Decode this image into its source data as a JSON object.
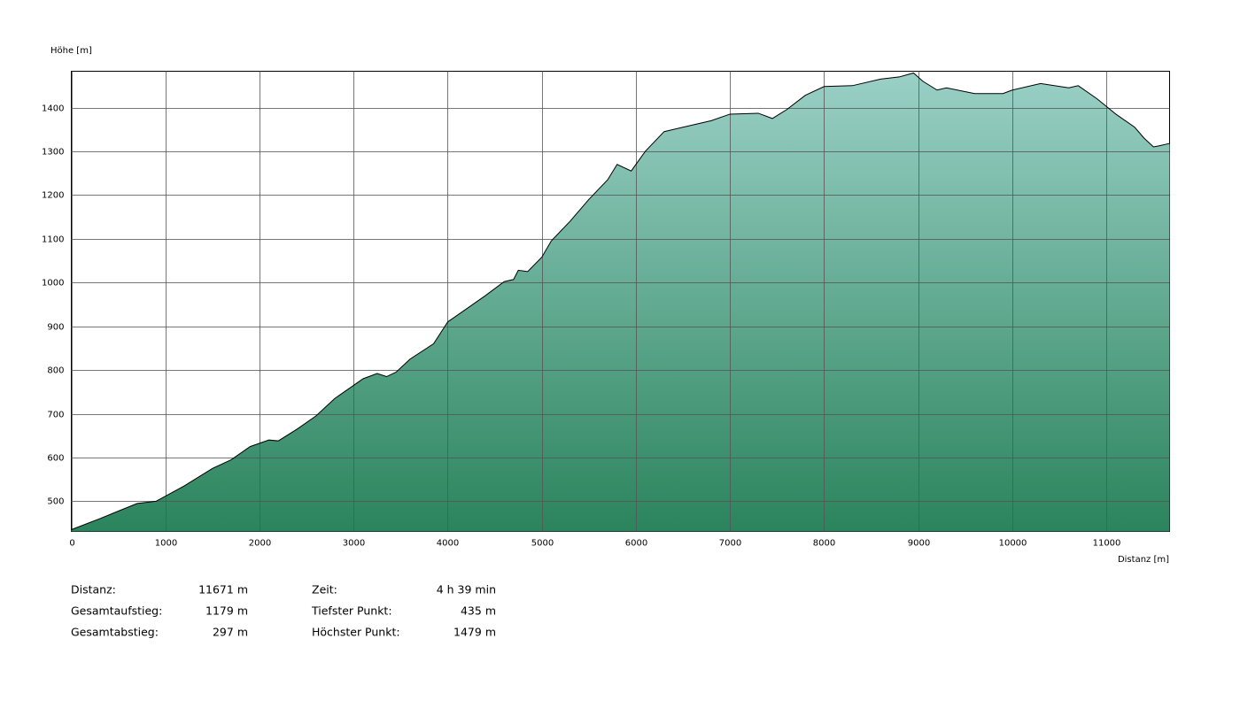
{
  "chart_data": {
    "type": "area",
    "ylabel": "Höhe [m]",
    "xlabel": "Distanz [m]",
    "x": [
      0,
      300,
      700,
      900,
      1200,
      1500,
      1700,
      1900,
      2100,
      2200,
      2400,
      2600,
      2800,
      3000,
      3100,
      3250,
      3350,
      3450,
      3600,
      3850,
      4000,
      4200,
      4400,
      4600,
      4700,
      4750,
      4850,
      5000,
      5100,
      5300,
      5500,
      5700,
      5800,
      5950,
      6100,
      6300,
      6500,
      6800,
      7000,
      7300,
      7450,
      7600,
      7800,
      8000,
      8300,
      8600,
      8800,
      8950,
      9050,
      9200,
      9300,
      9600,
      9900,
      10000,
      10300,
      10600,
      10700,
      10900,
      11100,
      11300,
      11400,
      11500,
      11550,
      11671
    ],
    "values": [
      435,
      460,
      495,
      500,
      535,
      575,
      595,
      625,
      640,
      638,
      665,
      695,
      735,
      765,
      780,
      792,
      785,
      795,
      825,
      860,
      910,
      940,
      970,
      1002,
      1007,
      1028,
      1025,
      1058,
      1095,
      1140,
      1190,
      1235,
      1270,
      1255,
      1300,
      1345,
      1355,
      1370,
      1385,
      1387,
      1375,
      1395,
      1428,
      1448,
      1450,
      1465,
      1470,
      1479,
      1460,
      1440,
      1445,
      1432,
      1432,
      1440,
      1455,
      1445,
      1450,
      1420,
      1385,
      1355,
      1330,
      1310,
      1312,
      1318
    ],
    "xlim": [
      0,
      11671
    ],
    "ylim": [
      431,
      1483
    ],
    "xticks": [
      0,
      1000,
      2000,
      3000,
      4000,
      5000,
      6000,
      7000,
      8000,
      9000,
      10000,
      11000
    ],
    "yticks": [
      500,
      600,
      700,
      800,
      900,
      1000,
      1100,
      1200,
      1300,
      1400
    ],
    "grid": true,
    "line_color": "#000000",
    "fill_gradient": [
      "#9ad0c6",
      "#2b845d"
    ]
  },
  "stats": {
    "rows": [
      [
        "Distanz:",
        "11671 m",
        "Zeit:",
        "4 h 39 min"
      ],
      [
        "Gesamtaufstieg:",
        "1179 m",
        "Tiefster Punkt:",
        "435 m"
      ],
      [
        "Gesamtabstieg:",
        "297 m",
        "Höchster Punkt:",
        "1479 m"
      ]
    ]
  }
}
